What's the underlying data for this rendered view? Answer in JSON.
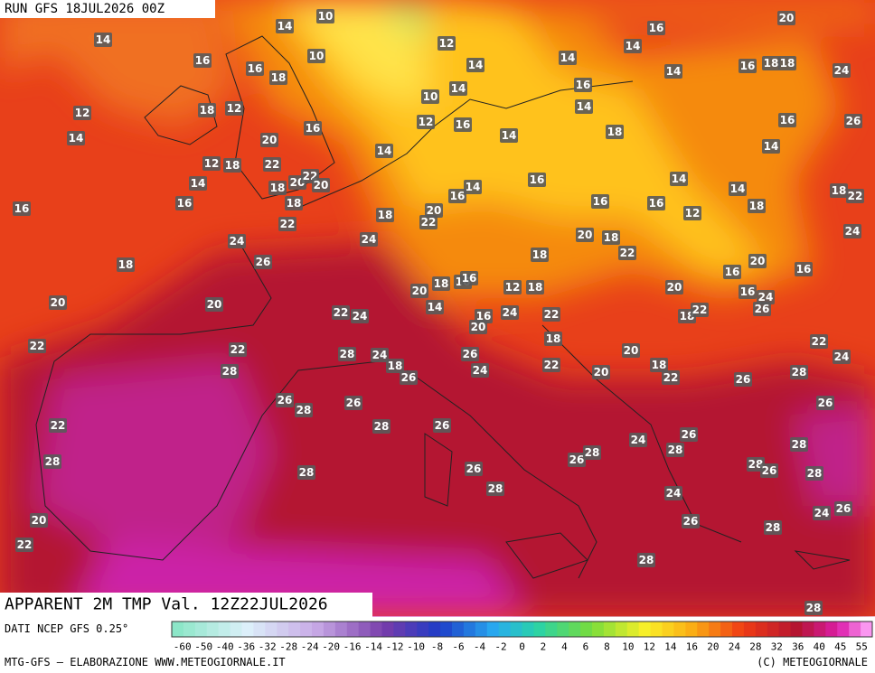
{
  "header": {
    "run": "RUN GFS 18JUL2026 00Z",
    "title": "APPARENT 2M TMP Val. 12Z22JUL2026"
  },
  "footer": {
    "source": "DATI NCEP GFS 0.25°",
    "credit": "MTG-GFS — ELABORAZIONE WWW.METEOGIORNALE.IT",
    "copyright": "(C) METEOGIORNALE"
  },
  "scale": {
    "labels": [
      "-60",
      "-50",
      "-40",
      "-36",
      "-32",
      "-28",
      "-24",
      "-20",
      "-16",
      "-14",
      "-12",
      "-10",
      "-8",
      "-6",
      "-4",
      "-2",
      "0",
      "2",
      "4",
      "6",
      "8",
      "10",
      "12",
      "14",
      "16",
      "20",
      "24",
      "28",
      "32",
      "36",
      "40",
      "45",
      "55"
    ]
  },
  "points": [
    10,
    14,
    14,
    16,
    16,
    18,
    10,
    12,
    14,
    14,
    10,
    12,
    16,
    14,
    14,
    16,
    14,
    16,
    14,
    18,
    16,
    18,
    18,
    24,
    20,
    26,
    16,
    14,
    12,
    14,
    18,
    12,
    20,
    16,
    12,
    18,
    22,
    14,
    16,
    16,
    18,
    20,
    22,
    20,
    18,
    22,
    14,
    18,
    20,
    22,
    16,
    14,
    14,
    16,
    16,
    16,
    14,
    12,
    14,
    18,
    18,
    22,
    24,
    24,
    24,
    18,
    26,
    18,
    20,
    18,
    22,
    16,
    20,
    16,
    20,
    20,
    20,
    18,
    16,
    16,
    12,
    18,
    20,
    16,
    24,
    26,
    18,
    22,
    22,
    24,
    14,
    16,
    20,
    24,
    22,
    18,
    22,
    22,
    28,
    28,
    24,
    18,
    26,
    26,
    24,
    22,
    20,
    20,
    18,
    22,
    26,
    22,
    24,
    28,
    26,
    26,
    28,
    26,
    22,
    28,
    26,
    28,
    28,
    26,
    28,
    26,
    28,
    24,
    28,
    26,
    28,
    26,
    28,
    28,
    24,
    26,
    28,
    24,
    26,
    20,
    22,
    28,
    28
  ]
}
